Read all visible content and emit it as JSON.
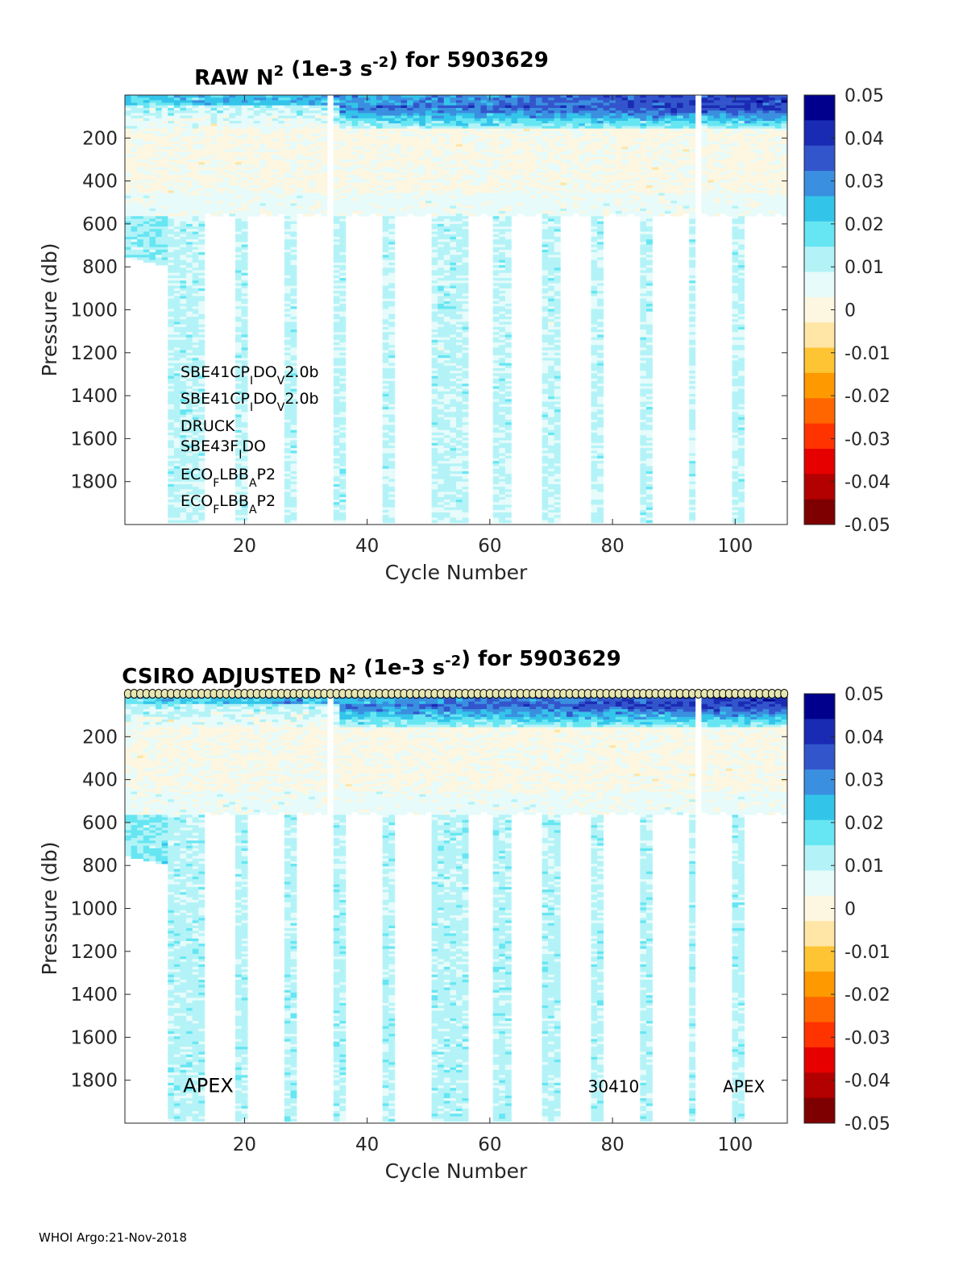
{
  "footer": "WHOI Argo:21-Nov-2018",
  "colorbar": {
    "ticks": [
      "0.05",
      "0.04",
      "0.03",
      "0.02",
      "0.01",
      "0",
      "-0.01",
      "-0.02",
      "-0.03",
      "-0.04",
      "-0.05"
    ],
    "colormap": [
      "#7f0000",
      "#b30000",
      "#e60000",
      "#ff3300",
      "#ff6600",
      "#ff9900",
      "#ffc433",
      "#ffe6a6",
      "#fdf6e0",
      "#e6fbfa",
      "#b3f3f7",
      "#66e6f2",
      "#33c4ea",
      "#3a8fe0",
      "#3355cc",
      "#1a2bb3",
      "#00008c"
    ],
    "range": [
      -0.05,
      0.05
    ]
  },
  "chart_data": [
    {
      "type": "heatmap",
      "title": "RAW N² (1e-3 s⁻²) for 5903629",
      "title_parts": {
        "pre": "RAW N",
        "sup1": "2",
        "mid": " (1e-3 s",
        "sup2": "-2",
        "post": ") for 5903629"
      },
      "xlabel": "Cycle Number",
      "ylabel": "Pressure (db)",
      "xlim": [
        1,
        108
      ],
      "ylim": [
        0,
        2000
      ],
      "y_reversed": true,
      "xticks": [
        "20",
        "40",
        "60",
        "80",
        "100"
      ],
      "yticks": [
        "200",
        "400",
        "600",
        "800",
        "1000",
        "1200",
        "1400",
        "1600",
        "1800"
      ],
      "shallow_cycles_max_pressure": 560,
      "deep_profile_cycles": [
        8,
        9,
        10,
        11,
        12,
        13,
        19,
        20,
        27,
        28,
        35,
        36,
        43,
        44,
        51,
        52,
        53,
        54,
        55,
        56,
        61,
        62,
        63,
        69,
        70,
        71,
        77,
        78,
        85,
        86,
        93,
        100,
        101
      ],
      "early_cycles_max_pressure": 770,
      "missing_cycles": [
        34,
        94
      ],
      "sensor_labels": [
        {
          "base": "SBE41CP",
          "sub1": "I",
          "mid": "DO",
          "sub2": "V",
          "tail": "2.0b"
        },
        {
          "base": "SBE41CP",
          "sub1": "I",
          "mid": "DO",
          "sub2": "V",
          "tail": "2.0b"
        },
        {
          "base": "DRUCK",
          "sub1": "",
          "mid": "",
          "sub2": "",
          "tail": ""
        },
        {
          "base": "SBE43F",
          "sub1": "I",
          "mid": "DO",
          "sub2": "",
          "tail": ""
        },
        {
          "base": "ECO",
          "sub1": "F",
          "mid": "LBB",
          "sub2": "A",
          "tail": "P2"
        },
        {
          "base": "ECO",
          "sub1": "F",
          "mid": "LBB",
          "sub2": "A",
          "tail": "P2"
        }
      ]
    },
    {
      "type": "heatmap",
      "title": "CSIRO  ADJUSTED N² (1e-3 s⁻²) for 5903629",
      "title_parts": {
        "pre": "CSIRO  ADJUSTED N",
        "sup1": "2",
        "mid": " (1e-3 s",
        "sup2": "-2",
        "post": ") for 5903629"
      },
      "xlabel": "Cycle Number",
      "ylabel": "Pressure (db)",
      "xlim": [
        1,
        108
      ],
      "ylim": [
        0,
        2000
      ],
      "y_reversed": true,
      "xticks": [
        "20",
        "40",
        "60",
        "80",
        "100"
      ],
      "yticks": [
        "200",
        "400",
        "600",
        "800",
        "1000",
        "1200",
        "1400",
        "1600",
        "1800"
      ],
      "qc_markers": "circles along top for each cycle",
      "annotations": [
        {
          "text": "APEX",
          "x": 10,
          "y": 1830
        },
        {
          "text": "30410",
          "x": 76,
          "y": 1830
        },
        {
          "text": "APEX",
          "x": 98,
          "y": 1830
        }
      ]
    }
  ]
}
